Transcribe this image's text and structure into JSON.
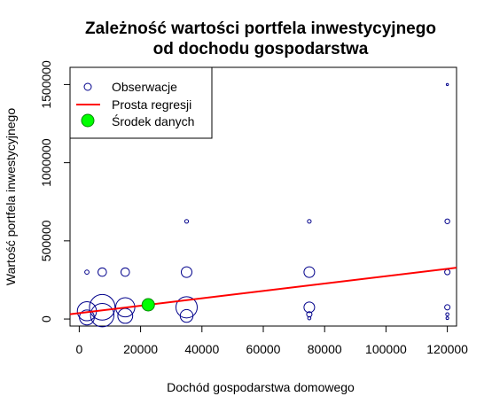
{
  "chart_data": {
    "type": "scatter",
    "title": [
      "Zależność wartości portfela inwestycyjnego",
      "od dochodu gospodarstwa"
    ],
    "xlabel": "Dochód gospodarstwa domowego",
    "ylabel": "Wartość portfela inwestycyjnego",
    "xlim": [
      -3000,
      123000
    ],
    "ylim": [
      -45000,
      1610000
    ],
    "x_ticks": [
      0,
      20000,
      40000,
      60000,
      80000,
      100000,
      120000
    ],
    "y_ticks": [
      0,
      500000,
      1000000,
      1500000
    ],
    "x_tick_labels": [
      "0",
      "20000",
      "40000",
      "60000",
      "80000",
      "100000",
      "120000"
    ],
    "y_tick_labels": [
      "0",
      "500000",
      "1000000",
      "1500000"
    ],
    "legend": {
      "position": "top-left",
      "entries": [
        "Obserwacje",
        "Prosta regresji",
        "Środek danych"
      ]
    },
    "series": [
      {
        "name": "Obserwacje",
        "marker": "circle-open",
        "color": "#00008b",
        "points": [
          {
            "x": 2500,
            "y": 300000,
            "size": 0.4
          },
          {
            "x": 2500,
            "y": 50000,
            "size": 1.8
          },
          {
            "x": 2500,
            "y": 10000,
            "size": 1.4
          },
          {
            "x": 7500,
            "y": 300000,
            "size": 0.8
          },
          {
            "x": 7500,
            "y": 75000,
            "size": 2.4
          },
          {
            "x": 7500,
            "y": 25000,
            "size": 2.2
          },
          {
            "x": 15000,
            "y": 300000,
            "size": 0.8
          },
          {
            "x": 15000,
            "y": 75000,
            "size": 1.8
          },
          {
            "x": 15000,
            "y": 20000,
            "size": 1.4
          },
          {
            "x": 35000,
            "y": 625000,
            "size": 0.35
          },
          {
            "x": 35000,
            "y": 300000,
            "size": 1.0
          },
          {
            "x": 35000,
            "y": 75000,
            "size": 2.0
          },
          {
            "x": 35000,
            "y": 20000,
            "size": 1.2
          },
          {
            "x": 75000,
            "y": 625000,
            "size": 0.35
          },
          {
            "x": 75000,
            "y": 300000,
            "size": 1.0
          },
          {
            "x": 75000,
            "y": 75000,
            "size": 1.0
          },
          {
            "x": 75000,
            "y": 30000,
            "size": 0.5
          },
          {
            "x": 75000,
            "y": 5000,
            "size": 0.3
          },
          {
            "x": 120000,
            "y": 1500000,
            "size": 0.2
          },
          {
            "x": 120000,
            "y": 625000,
            "size": 0.45
          },
          {
            "x": 120000,
            "y": 300000,
            "size": 0.5
          },
          {
            "x": 120000,
            "y": 75000,
            "size": 0.5
          },
          {
            "x": 120000,
            "y": 30000,
            "size": 0.3
          },
          {
            "x": 120000,
            "y": 5000,
            "size": 0.25
          }
        ]
      },
      {
        "name": "Prosta regresji",
        "type": "line",
        "color": "#ff0000",
        "intercept": 38000,
        "slope": 2.36
      },
      {
        "name": "Środek danych",
        "marker": "circle-filled",
        "color": "#00ff00",
        "points": [
          {
            "x": 22500,
            "y": 91000
          }
        ]
      }
    ]
  }
}
